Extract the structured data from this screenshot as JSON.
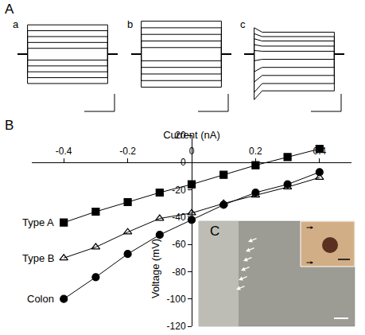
{
  "chart_data": {
    "type": "line",
    "panel_label": "B",
    "x_label": "Current (nA)",
    "y_label": "Voltage (mV)",
    "xlim": [
      -0.5,
      0.5
    ],
    "ylim": [
      -120,
      20
    ],
    "xticks": [
      -0.4,
      -0.2,
      0,
      0.2,
      0.4
    ],
    "yticks": [
      20,
      0,
      -20,
      -40,
      -60,
      -80,
      -100,
      -120
    ],
    "grid": false,
    "x": [
      -0.4,
      -0.3,
      -0.2,
      -0.1,
      0,
      0.1,
      0.2,
      0.3,
      0.4
    ],
    "series": [
      {
        "name": "Type A",
        "color": "#000000",
        "marker": "square",
        "line_style": "solid",
        "values": [
          -44,
          -36,
          -29,
          -22,
          -16,
          -9,
          -2,
          4,
          10
        ]
      },
      {
        "name": "Type B",
        "color": "#000000",
        "marker": "triangle-up-open",
        "line_style": "solid",
        "values": [
          -70,
          -62,
          -51,
          -41,
          -37,
          -30,
          -24,
          -18,
          -11
        ]
      },
      {
        "name": "Colon",
        "color": "#000000",
        "marker": "circle",
        "line_style": "solid",
        "values": [
          -100,
          -84,
          -67,
          -53,
          -42,
          -31,
          -22,
          -16,
          -7
        ]
      }
    ]
  },
  "traces_panel": {
    "label": "A",
    "t_total": 100,
    "t_start": 10,
    "t_sag": 18,
    "t_end": 90,
    "ylim": [
      -6.5,
      5
    ],
    "tick_labels": false,
    "subpanels": [
      {
        "label": "a",
        "levels": [
          4,
          3.2,
          2.4,
          1.6,
          0.8,
          -0.8,
          -1.6,
          -2.4,
          -3.2,
          -4
        ]
      },
      {
        "label": "b",
        "levels": [
          4.5,
          3.6,
          2.7,
          1.8,
          0.9,
          -0.9,
          -1.8,
          -2.7,
          -3.6,
          -4.5
        ]
      },
      {
        "label": "c",
        "levels": [
          3,
          2.4,
          1.8,
          1.1,
          0.4,
          -0.7,
          -1.8,
          -2.9,
          -4,
          -5
        ],
        "onset_levels": [
          3.6,
          2.8,
          2.1,
          1.3,
          0.5,
          -0.9,
          -2.4,
          -3.8,
          -5.2,
          -6.2
        ]
      }
    ]
  },
  "image_panel": {
    "label": "C"
  }
}
